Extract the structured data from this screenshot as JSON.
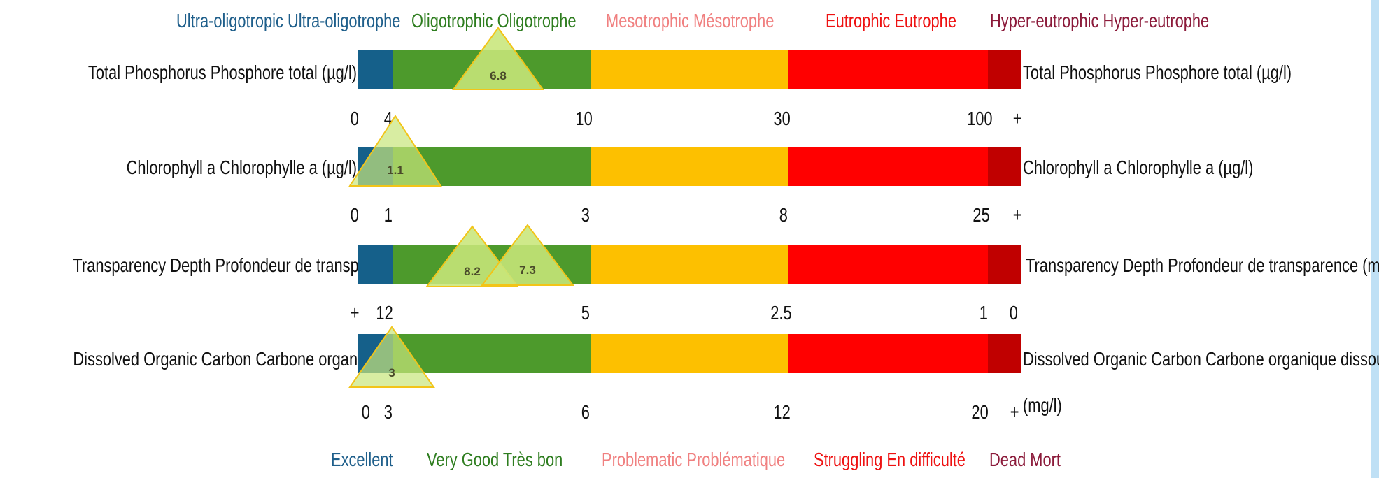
{
  "colors": {
    "ultra": "#15608a",
    "oligo": "#4d9a2c",
    "meso": "#fdc000",
    "eutro": "#ff0000",
    "hyper": "#c00000",
    "ultra_text": "#1f5f8b",
    "oligo_text": "#2e7d1f",
    "meso_text": "#f08080",
    "eutro_text": "#ee1111",
    "hyper_text": "#8b1a3a",
    "marker_fill": "#c8e67a",
    "marker_stroke": "#f2c418"
  },
  "categories": {
    "ultra": "Ultra-oligotropic Ultra-oligotrophe",
    "oligo": "Oligotrophic  Oligotrophe",
    "meso": "Mesotrophic  Mésotrophe",
    "eutro": "Eutrophic  Eutrophe",
    "hyper": "Hyper-eutrophic Hyper-eutrophe"
  },
  "ratings": {
    "ultra": "Excellent",
    "oligo": "Very Good  Très bon",
    "meso": "Problematic  Problématique",
    "eutro": "Struggling  En difficulté",
    "hyper": "Dead Mort"
  },
  "rows": [
    {
      "label_left": "Total Phosphorus  Phosphore total (µg/l)",
      "label_right": "Total Phosphorus  Phosphore total (µg/l)",
      "ticks": [
        "0",
        "4",
        "10",
        "30",
        "100",
        "+"
      ],
      "markers": [
        "6.8"
      ]
    },
    {
      "label_left": "Chlorophyll a  Chlorophylle a (µg/l)",
      "label_right": "Chlorophyll a  Chlorophylle a (µg/l)",
      "ticks": [
        "0",
        "1",
        "3",
        "8",
        "25",
        "+"
      ],
      "markers": [
        "1.1"
      ]
    },
    {
      "label_left": "Transparency  Depth  Profondeur de transparence (m)",
      "label_right": "Transparency  Depth  Profondeur de transparence (m)",
      "ticks": [
        "+",
        "12",
        "5",
        "2.5",
        "1",
        "0"
      ],
      "markers": [
        "8.2",
        "7.3"
      ]
    },
    {
      "label_left": "Dissolved Organic Carbon  Carbone organique dissous (mg/l)",
      "label_right": "Dissolved Organic Carbon  Carbone organique dissous",
      "label_right_unit": "(mg/l)",
      "ticks": [
        "0",
        "3",
        "6",
        "12",
        "20",
        "+"
      ],
      "markers": [
        "3"
      ]
    }
  ]
}
